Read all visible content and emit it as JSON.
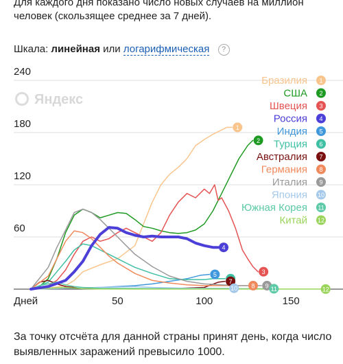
{
  "intro_text": "Для каждого дня показано число новых случаев на миллион человек (скользящее среднее за 7 дней).",
  "scale": {
    "label": "Шкала:",
    "linear": "линейная",
    "or": "или",
    "log": "логарифмическая",
    "help": "?"
  },
  "watermark": "Яндекс",
  "outro_text": "За точку отсчёта для данной страны принят день, когда число выявленных заражений превысило 1000.",
  "chart_data": {
    "type": "line",
    "xlabel": "Дней",
    "x_ticks": [
      50,
      100,
      150
    ],
    "y_ticks": [
      60,
      120,
      180,
      240
    ],
    "xlim": [
      0,
      180
    ],
    "ylim": [
      0,
      240
    ],
    "grid": "horizontal",
    "legend_placement": "top-right",
    "series": [
      {
        "name": "Бразилия",
        "marker": "1",
        "color": "#f9c58d",
        "points": [
          [
            0,
            0
          ],
          [
            10,
            1
          ],
          [
            20,
            4
          ],
          [
            25,
            10
          ],
          [
            30,
            20
          ],
          [
            40,
            28
          ],
          [
            50,
            35
          ],
          [
            60,
            50
          ],
          [
            65,
            75
          ],
          [
            70,
            100
          ],
          [
            75,
            120
          ],
          [
            80,
            132
          ],
          [
            85,
            140
          ],
          [
            90,
            150
          ],
          [
            95,
            165
          ],
          [
            100,
            172
          ],
          [
            105,
            178
          ],
          [
            110,
            183
          ],
          [
            113,
            186
          ],
          [
            116,
            186
          ]
        ]
      },
      {
        "name": "США",
        "marker": "2",
        "color": "#1e9a22",
        "points": [
          [
            0,
            0
          ],
          [
            5,
            3
          ],
          [
            10,
            12
          ],
          [
            15,
            35
          ],
          [
            20,
            65
          ],
          [
            25,
            85
          ],
          [
            30,
            92
          ],
          [
            35,
            88
          ],
          [
            40,
            82
          ],
          [
            45,
            85
          ],
          [
            50,
            88
          ],
          [
            55,
            87
          ],
          [
            60,
            80
          ],
          [
            65,
            72
          ],
          [
            70,
            70
          ],
          [
            75,
            67
          ],
          [
            80,
            65
          ],
          [
            85,
            64
          ],
          [
            90,
            65
          ],
          [
            95,
            68
          ],
          [
            100,
            75
          ],
          [
            105,
            90
          ],
          [
            110,
            110
          ],
          [
            115,
            130
          ],
          [
            120,
            150
          ],
          [
            125,
            165
          ],
          [
            128,
            171
          ]
        ]
      },
      {
        "name": "Швеция",
        "marker": "3",
        "color": "#e55353",
        "points": [
          [
            0,
            0
          ],
          [
            10,
            4
          ],
          [
            15,
            10
          ],
          [
            20,
            22
          ],
          [
            25,
            40
          ],
          [
            30,
            55
          ],
          [
            35,
            60
          ],
          [
            40,
            55
          ],
          [
            45,
            58
          ],
          [
            50,
            65
          ],
          [
            55,
            70
          ],
          [
            60,
            65
          ],
          [
            65,
            60
          ],
          [
            70,
            55
          ],
          [
            75,
            65
          ],
          [
            80,
            85
          ],
          [
            85,
            100
          ],
          [
            90,
            110
          ],
          [
            95,
            105
          ],
          [
            100,
            115
          ],
          [
            103,
            110
          ],
          [
            106,
            120
          ],
          [
            108,
            102
          ],
          [
            110,
            105
          ],
          [
            114,
            90
          ],
          [
            118,
            70
          ],
          [
            122,
            45
          ],
          [
            125,
            35
          ],
          [
            128,
            26
          ],
          [
            131,
            20
          ]
        ]
      },
      {
        "name": "Россия",
        "marker": "4",
        "color": "#4c3fd8",
        "points": [
          [
            0,
            0
          ],
          [
            10,
            3
          ],
          [
            20,
            10
          ],
          [
            25,
            20
          ],
          [
            30,
            32
          ],
          [
            35,
            50
          ],
          [
            40,
            63
          ],
          [
            45,
            71
          ],
          [
            50,
            70
          ],
          [
            55,
            65
          ],
          [
            60,
            62
          ],
          [
            65,
            60
          ],
          [
            70,
            61
          ],
          [
            75,
            60
          ],
          [
            80,
            60
          ],
          [
            85,
            60
          ],
          [
            90,
            58
          ],
          [
            95,
            53
          ],
          [
            100,
            50
          ],
          [
            105,
            48
          ],
          [
            108,
            48
          ]
        ]
      },
      {
        "name": "Индия",
        "marker": "5",
        "color": "#3f97dc",
        "points": [
          [
            0,
            0
          ],
          [
            20,
            1
          ],
          [
            40,
            2
          ],
          [
            60,
            4
          ],
          [
            70,
            6
          ],
          [
            80,
            9
          ],
          [
            90,
            12
          ],
          [
            98,
            16
          ],
          [
            103,
            17
          ]
        ]
      },
      {
        "name": "Турция",
        "marker": "6",
        "color": "#3fbfa4",
        "points": [
          [
            0,
            0
          ],
          [
            10,
            8
          ],
          [
            15,
            20
          ],
          [
            20,
            32
          ],
          [
            25,
            45
          ],
          [
            30,
            52
          ],
          [
            35,
            50
          ],
          [
            40,
            45
          ],
          [
            45,
            40
          ],
          [
            50,
            35
          ],
          [
            55,
            30
          ],
          [
            60,
            25
          ],
          [
            70,
            18
          ],
          [
            80,
            12
          ],
          [
            90,
            11
          ],
          [
            100,
            11
          ],
          [
            105,
            12
          ],
          [
            110,
            12
          ],
          [
            112,
            12
          ]
        ]
      },
      {
        "name": "Австралия",
        "marker": "7",
        "color": "#7a1010",
        "points": [
          [
            0,
            0
          ],
          [
            5,
            8
          ],
          [
            10,
            10
          ],
          [
            15,
            6
          ],
          [
            20,
            3
          ],
          [
            30,
            1
          ],
          [
            50,
            0.3
          ],
          [
            80,
            0.5
          ],
          [
            100,
            2
          ],
          [
            108,
            8
          ],
          [
            112,
            9
          ]
        ]
      },
      {
        "name": "Германия",
        "marker": "8",
        "color": "#f08a5d",
        "points": [
          [
            0,
            0
          ],
          [
            10,
            15
          ],
          [
            15,
            35
          ],
          [
            20,
            55
          ],
          [
            25,
            67
          ],
          [
            30,
            65
          ],
          [
            35,
            58
          ],
          [
            40,
            48
          ],
          [
            45,
            38
          ],
          [
            50,
            30
          ],
          [
            60,
            18
          ],
          [
            70,
            10
          ],
          [
            80,
            7
          ],
          [
            90,
            5
          ],
          [
            100,
            4
          ],
          [
            110,
            4
          ],
          [
            120,
            4
          ],
          [
            125,
            4
          ]
        ]
      },
      {
        "name": "Италия",
        "marker": "9",
        "color": "#9a9a9a",
        "points": [
          [
            0,
            0
          ],
          [
            10,
            25
          ],
          [
            15,
            48
          ],
          [
            20,
            68
          ],
          [
            25,
            88
          ],
          [
            30,
            92
          ],
          [
            35,
            88
          ],
          [
            40,
            80
          ],
          [
            45,
            70
          ],
          [
            50,
            60
          ],
          [
            55,
            50
          ],
          [
            60,
            40
          ],
          [
            70,
            26
          ],
          [
            80,
            15
          ],
          [
            90,
            9
          ],
          [
            100,
            6
          ],
          [
            110,
            5
          ],
          [
            120,
            4
          ],
          [
            130,
            4
          ],
          [
            133,
            4
          ]
        ]
      },
      {
        "name": "Япония",
        "marker": "10",
        "color": "#a5c9ea",
        "points": [
          [
            0,
            0
          ],
          [
            20,
            1
          ],
          [
            40,
            2
          ],
          [
            60,
            3
          ],
          [
            70,
            2
          ],
          [
            80,
            1.5
          ],
          [
            90,
            1
          ],
          [
            100,
            1
          ],
          [
            110,
            1
          ],
          [
            114,
            1
          ]
        ]
      },
      {
        "name": "Южная Корея",
        "marker": "11",
        "color": "#5cc9a7",
        "points": [
          [
            0,
            0
          ],
          [
            5,
            4
          ],
          [
            10,
            6
          ],
          [
            15,
            8
          ],
          [
            20,
            5
          ],
          [
            25,
            3
          ],
          [
            30,
            2
          ],
          [
            40,
            1
          ],
          [
            60,
            0.8
          ],
          [
            80,
            0.5
          ],
          [
            100,
            0.5
          ],
          [
            120,
            0.5
          ],
          [
            137,
            0.5
          ]
        ]
      },
      {
        "name": "Китай",
        "marker": "12",
        "color": "#9ad45a",
        "points": [
          [
            0,
            0
          ],
          [
            10,
            1
          ],
          [
            20,
            2
          ],
          [
            30,
            0.5
          ],
          [
            40,
            0.2
          ],
          [
            60,
            0.1
          ],
          [
            100,
            0.1
          ],
          [
            140,
            0.1
          ],
          [
            170,
            0.1
          ]
        ]
      }
    ]
  }
}
